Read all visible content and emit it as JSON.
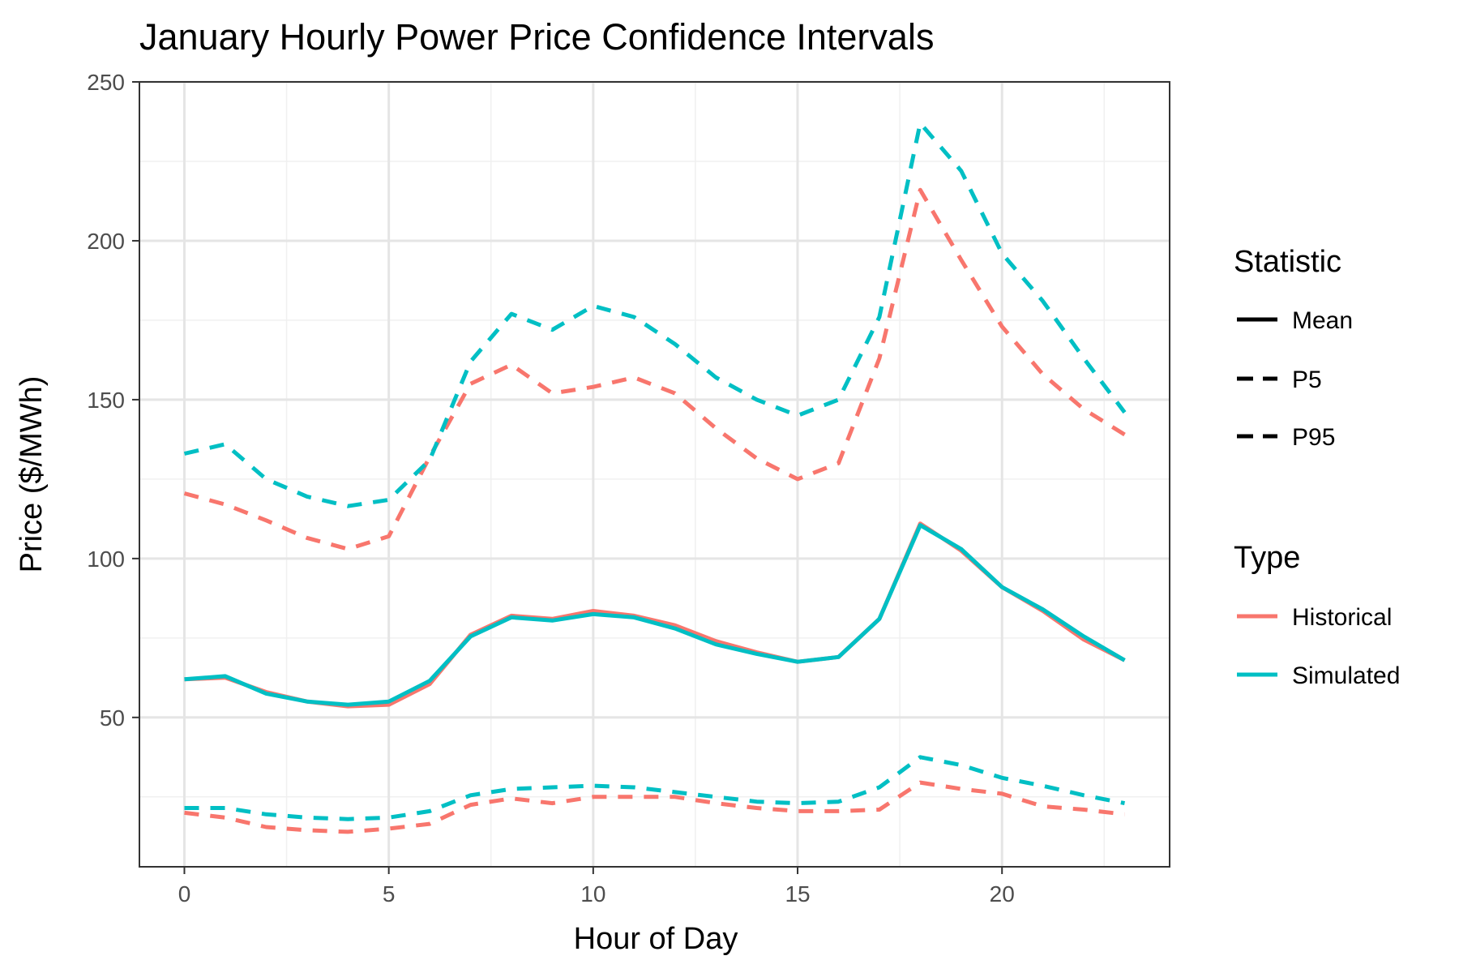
{
  "chart_data": {
    "type": "line",
    "title": "January Hourly Power Price Confidence Intervals",
    "xlabel": "Hour of Day",
    "ylabel": "Price ($/MWh)",
    "xlim": [
      -1.1,
      24.1
    ],
    "ylim": [
      3,
      250
    ],
    "x_ticks": [
      0,
      5,
      10,
      15,
      20
    ],
    "x_tick_labels": [
      "0",
      "5",
      "10",
      "15",
      "20"
    ],
    "y_ticks": [
      50,
      100,
      150,
      200,
      250
    ],
    "y_tick_labels": [
      "50",
      "100",
      "150",
      "200",
      "250"
    ],
    "grid": true,
    "legend_position": "right",
    "legend": {
      "statistic": {
        "title": "Statistic",
        "entries": [
          {
            "label": "Mean",
            "linetype": "solid"
          },
          {
            "label": "P5",
            "linetype": "dashed"
          },
          {
            "label": "P95",
            "linetype": "dashed"
          }
        ]
      },
      "type": {
        "title": "Type",
        "entries": [
          {
            "label": "Historical",
            "color": "#F8766D"
          },
          {
            "label": "Simulated",
            "color": "#00BFC4"
          }
        ]
      }
    },
    "x": [
      0,
      1,
      2,
      3,
      4,
      5,
      6,
      7,
      8,
      9,
      10,
      11,
      12,
      13,
      14,
      15,
      16,
      17,
      18,
      19,
      20,
      21,
      22,
      23
    ],
    "series": [
      {
        "type": "Historical",
        "statistic": "Mean",
        "color": "#F8766D",
        "linetype": "solid",
        "values": [
          62,
          62.5,
          58,
          55,
          53.5,
          54,
          60.5,
          76,
          82,
          81,
          83.5,
          82,
          79,
          74,
          70.5,
          67.5,
          69,
          81,
          111,
          102.5,
          91,
          83.5,
          74.5,
          68
        ]
      },
      {
        "type": "Simulated",
        "statistic": "Mean",
        "color": "#00BFC4",
        "linetype": "solid",
        "values": [
          62,
          63,
          57.5,
          55,
          54,
          55,
          61.5,
          75.5,
          81.5,
          80.5,
          82.5,
          81.5,
          78,
          73,
          70,
          67.5,
          69,
          81,
          110.5,
          103,
          91,
          84,
          75.5,
          68
        ]
      },
      {
        "type": "Historical",
        "statistic": "P95",
        "color": "#F8766D",
        "linetype": "dashed",
        "values": [
          120.5,
          117,
          112,
          106.5,
          103,
          107,
          132,
          155,
          161,
          152,
          154,
          157,
          152,
          141,
          131.5,
          125,
          130,
          163,
          216,
          194,
          173,
          158,
          147,
          139
        ]
      },
      {
        "type": "Simulated",
        "statistic": "P95",
        "color": "#00BFC4",
        "linetype": "dashed",
        "values": [
          133,
          136,
          125,
          119.5,
          116.5,
          118.5,
          131,
          162,
          177,
          172,
          179.5,
          176,
          167.5,
          157,
          150,
          145,
          150,
          176,
          237,
          222,
          196,
          181,
          163,
          146
        ]
      },
      {
        "type": "Historical",
        "statistic": "P5",
        "color": "#F8766D",
        "linetype": "dashed",
        "values": [
          20,
          18.5,
          15.5,
          14.5,
          14,
          15,
          16.5,
          22.5,
          24.5,
          23,
          25,
          25,
          25,
          23,
          21.5,
          20.5,
          20.5,
          21,
          29.5,
          27.5,
          26,
          22,
          21,
          19.5
        ]
      },
      {
        "type": "Simulated",
        "statistic": "P5",
        "color": "#00BFC4",
        "linetype": "dashed",
        "values": [
          21.5,
          21.5,
          19.5,
          18.5,
          18,
          18.5,
          20.5,
          25.5,
          27.5,
          28,
          28.5,
          28,
          26.5,
          25,
          23.5,
          23,
          23.5,
          28,
          37.5,
          35,
          31,
          28.5,
          25.5,
          23
        ]
      }
    ]
  }
}
